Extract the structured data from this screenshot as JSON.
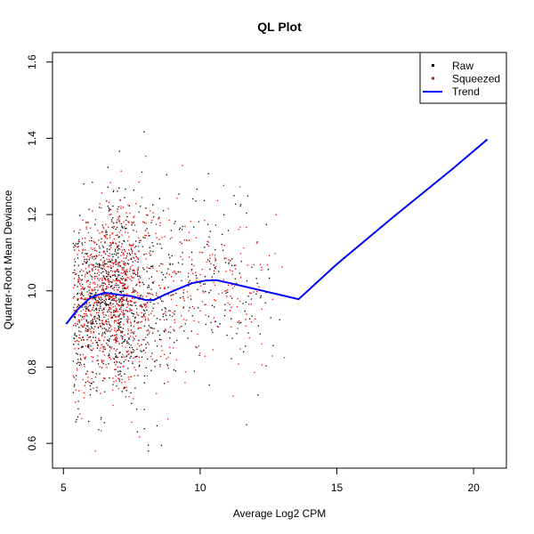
{
  "chart_data": {
    "type": "scatter",
    "title": "QL Plot",
    "xlabel": "Average Log2 CPM",
    "ylabel": "Quarter-Root Mean Deviance",
    "xlim": [
      4.6,
      21.2
    ],
    "ylim": [
      0.535,
      1.625
    ],
    "x_ticks": [
      5,
      10,
      15,
      20
    ],
    "y_ticks": [
      0.6,
      0.8,
      1.0,
      1.2,
      1.4,
      1.6
    ],
    "x_tick_labels": [
      "5",
      "10",
      "15",
      "20"
    ],
    "y_tick_labels": [
      "0.6",
      "0.8",
      "1.0",
      "1.2",
      "1.4",
      "1.6"
    ],
    "grid": false,
    "legend_position": "top-right",
    "legend": [
      {
        "label": "Raw",
        "color": "#000000",
        "kind": "point"
      },
      {
        "label": "Squeezed",
        "color": "#ff0000",
        "kind": "point"
      },
      {
        "label": "Trend",
        "color": "#0000ff",
        "kind": "line"
      }
    ],
    "series": [
      {
        "name": "Trend",
        "kind": "line",
        "color": "#0000ff",
        "x": [
          5.1,
          5.5,
          6.0,
          6.5,
          7.0,
          7.5,
          8.0,
          8.3,
          8.7,
          9.2,
          9.7,
          10.2,
          10.6,
          11.1,
          11.7,
          12.3,
          12.9,
          13.6,
          15.0,
          17.0,
          19.2,
          20.5
        ],
        "y": [
          0.913,
          0.95,
          0.983,
          0.995,
          0.99,
          0.986,
          0.976,
          0.976,
          0.99,
          1.005,
          1.02,
          1.027,
          1.028,
          1.02,
          1.01,
          1.0,
          0.99,
          0.978,
          1.07,
          1.19,
          1.318,
          1.397
        ]
      },
      {
        "name": "Raw",
        "kind": "points",
        "color": "#000000",
        "n": 1050,
        "seed": 7,
        "distribution": "Raw per-gene quarter-root deviance scattered around the trend, denser at low average log2 CPM (x roughly 5.3 to 13.2)"
      },
      {
        "name": "Squeezed",
        "kind": "points",
        "color": "#ff0000",
        "n": 1050,
        "seed": 11,
        "distribution": "Squeezed estimates, same genes shrunk toward the trend"
      }
    ]
  }
}
